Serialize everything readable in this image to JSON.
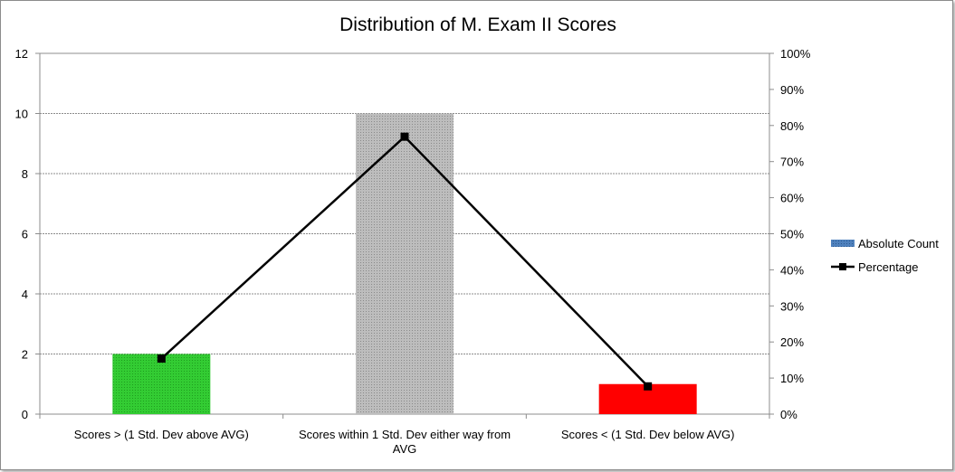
{
  "chart_data": {
    "type": "bar",
    "title": "Distribution of M. Exam II Scores",
    "categories": [
      "Scores > (1 Std. Dev above AVG)",
      "Scores within 1 Std. Dev either way from AVG",
      "Scores < (1 Std. Dev below AVG)"
    ],
    "category_label_lines": [
      [
        "Scores > (1 Std. Dev above AVG)"
      ],
      [
        "Scores within 1 Std. Dev either way from",
        "AVG"
      ],
      [
        "Scores < (1 Std. Dev below AVG)"
      ]
    ],
    "series": [
      {
        "name": "Absolute Count",
        "type": "bar",
        "axis": "left",
        "values": [
          2,
          10,
          1
        ],
        "bar_colors": [
          "#33cc33",
          "#b3b3b3",
          "#ff0000"
        ],
        "legend_color": "#4f81bd"
      },
      {
        "name": "Percentage",
        "type": "line",
        "axis": "right",
        "values": [
          0.154,
          0.769,
          0.077
        ],
        "color": "#000000",
        "marker": "square"
      }
    ],
    "ylim": [
      0,
      12
    ],
    "y_ticks": [
      0,
      2,
      4,
      6,
      8,
      10,
      12
    ],
    "y2lim": [
      0,
      1
    ],
    "y2_ticks": [
      "0%",
      "10%",
      "20%",
      "30%",
      "40%",
      "50%",
      "60%",
      "70%",
      "80%",
      "90%",
      "100%"
    ],
    "grid": true,
    "legend_position": "right"
  }
}
